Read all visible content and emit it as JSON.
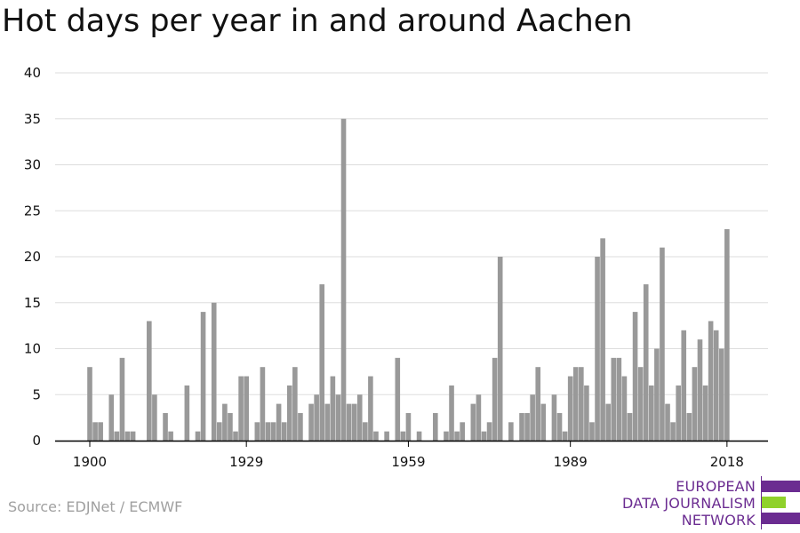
{
  "header": {
    "title": "Hot days per year in and around Aachen"
  },
  "footer": {
    "source": "Source: EDJNet / ECMWF"
  },
  "logo": {
    "lines": [
      "EUROPEAN",
      "DATA JOURNALISM",
      "NETWORK"
    ],
    "colors": {
      "purple": "#6b2c91",
      "green": "#8fd12b"
    }
  },
  "colors": {
    "bar": "#999999",
    "grid": "#dddddd",
    "axis": "#000000",
    "text": "#111111"
  },
  "chart_data": {
    "type": "bar",
    "title": "Hot days per year in and around Aachen",
    "xlabel": "",
    "ylabel": "",
    "ylim": [
      0,
      40
    ],
    "yticks": [
      0,
      5,
      10,
      15,
      20,
      25,
      30,
      35,
      40
    ],
    "xticks": [
      "1900",
      "1929",
      "1959",
      "1989",
      "2018"
    ],
    "grid": true,
    "start_year": 1900,
    "categories": [
      "1900",
      "1901",
      "1902",
      "1903",
      "1904",
      "1905",
      "1906",
      "1907",
      "1908",
      "1909",
      "1910",
      "1911",
      "1912",
      "1913",
      "1914",
      "1915",
      "1916",
      "1917",
      "1918",
      "1919",
      "1920",
      "1921",
      "1922",
      "1923",
      "1924",
      "1925",
      "1926",
      "1927",
      "1928",
      "1929",
      "1930",
      "1931",
      "1932",
      "1933",
      "1934",
      "1935",
      "1936",
      "1937",
      "1938",
      "1939",
      "1940",
      "1941",
      "1942",
      "1943",
      "1944",
      "1945",
      "1946",
      "1947",
      "1948",
      "1949",
      "1950",
      "1951",
      "1952",
      "1953",
      "1954",
      "1955",
      "1956",
      "1957",
      "1958",
      "1959",
      "1960",
      "1961",
      "1962",
      "1963",
      "1964",
      "1965",
      "1966",
      "1967",
      "1968",
      "1969",
      "1970",
      "1971",
      "1972",
      "1973",
      "1974",
      "1975",
      "1976",
      "1977",
      "1978",
      "1979",
      "1980",
      "1981",
      "1982",
      "1983",
      "1984",
      "1985",
      "1986",
      "1987",
      "1988",
      "1989",
      "1990",
      "1991",
      "1992",
      "1993",
      "1994",
      "1995",
      "1996",
      "1997",
      "1998",
      "1999",
      "2000",
      "2001",
      "2002",
      "2003",
      "2004",
      "2005",
      "2006",
      "2007",
      "2008",
      "2009",
      "2010",
      "2011",
      "2012",
      "2013",
      "2014",
      "2015",
      "2016",
      "2017",
      "2018"
    ],
    "values": [
      8,
      2,
      2,
      0,
      5,
      1,
      9,
      1,
      1,
      0,
      0,
      13,
      5,
      0,
      3,
      1,
      0,
      0,
      6,
      0,
      1,
      14,
      0,
      15,
      2,
      4,
      3,
      1,
      7,
      7,
      0,
      2,
      8,
      2,
      2,
      4,
      2,
      6,
      8,
      3,
      0,
      4,
      5,
      17,
      4,
      7,
      5,
      35,
      4,
      4,
      5,
      2,
      7,
      1,
      0,
      1,
      0,
      9,
      1,
      3,
      0,
      1,
      0,
      0,
      3,
      0,
      1,
      6,
      1,
      2,
      0,
      4,
      5,
      1,
      2,
      9,
      20,
      0,
      2,
      0,
      3,
      3,
      5,
      8,
      4,
      0,
      5,
      3,
      1,
      7,
      8,
      8,
      6,
      2,
      20,
      22,
      4,
      9,
      9,
      7,
      3,
      14,
      8,
      17,
      6,
      10,
      21,
      4,
      2,
      6,
      12,
      3,
      8,
      11,
      6,
      13,
      12,
      10,
      23
    ]
  }
}
